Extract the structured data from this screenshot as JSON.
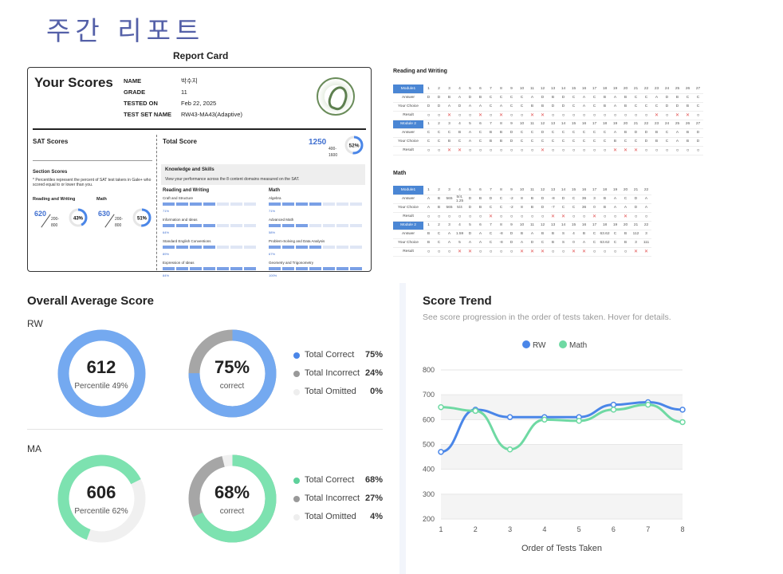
{
  "page_title": "주간 리포트",
  "report_card": {
    "title": "Report Card",
    "heading": "Your Scores",
    "info": [
      {
        "k": "NAME",
        "v": "박수지"
      },
      {
        "k": "GRADE",
        "v": "11"
      },
      {
        "k": "TESTED ON",
        "v": "Feb 22, 2025"
      },
      {
        "k": "TEST SET NAME",
        "v": "RW43-MA43(Adaptive)"
      }
    ],
    "sat_scores": "SAT Scores",
    "total_score_label": "Total Score",
    "total_score": "1250",
    "total_range": "400-\n1600",
    "total_pct": "52%",
    "section_scores": "Section Scores",
    "section_note": "* Percentiles represent the percent of SAT test takers in Gale+ who scored equal to or lower than you.",
    "rw_label": "Reading and Writing",
    "rw_score": "620",
    "rw_range": "200-\n800",
    "rw_pct": "43%",
    "math_label": "Math",
    "math_score": "630",
    "math_range": "200-\n800",
    "math_pct": "51%",
    "ks_title": "Knowledge and Skills",
    "ks_desc": "View your performance across the 8 content domains measured on the SAT.",
    "rw_domains": [
      {
        "name": "Craft and Structure",
        "pct": "71%",
        "fill": 4
      },
      {
        "name": "Information and Ideas",
        "pct": "64%",
        "fill": 4
      },
      {
        "name": "Standard English Conventions",
        "pct": "89%",
        "fill": 4
      },
      {
        "name": "Expression of Ideas",
        "pct": "84%",
        "fill": 7
      }
    ],
    "math_domains": [
      {
        "name": "Algebra",
        "pct": "71%",
        "fill": 4
      },
      {
        "name": "Advanced Math",
        "pct": "58%",
        "fill": 3
      },
      {
        "name": "Problem-Solving and Data Analysis",
        "pct": "67%",
        "fill": 4
      },
      {
        "name": "Geometry and Trigonometry",
        "pct": "100%",
        "fill": 7
      }
    ]
  },
  "rw_table": {
    "title": "Reading and Writing",
    "modules": [
      {
        "label": "Module1",
        "nums": [
          "1",
          "2",
          "3",
          "4",
          "5",
          "6",
          "7",
          "8",
          "9",
          "10",
          "11",
          "12",
          "13",
          "14",
          "15",
          "16",
          "17",
          "18",
          "19",
          "20",
          "21",
          "22",
          "23",
          "24",
          "25",
          "26",
          "27"
        ],
        "answer": [
          "D",
          "D",
          "B",
          "A",
          "D",
          "B",
          "C",
          "C",
          "C",
          "C",
          "A",
          "D",
          "B",
          "D",
          "C",
          "A",
          "C",
          "B",
          "A",
          "B",
          "C",
          "C",
          "A",
          "D",
          "B",
          "C",
          "C"
        ],
        "choice": [
          "D",
          "D",
          "A",
          "D",
          "A",
          "A",
          "C",
          "A",
          "C",
          "C",
          "B",
          "B",
          "D",
          "D",
          "C",
          "A",
          "C",
          "B",
          "A",
          "B",
          "C",
          "C",
          "C",
          "D",
          "D",
          "B",
          "C"
        ],
        "result": [
          "O",
          "O",
          "X",
          "O",
          "O",
          "X",
          "O",
          "X",
          "O",
          "O",
          "X",
          "X",
          "O",
          "O",
          "O",
          "O",
          "O",
          "O",
          "O",
          "O",
          "O",
          "O",
          "X",
          "O",
          "X",
          "X",
          "O"
        ]
      },
      {
        "label": "Module 2",
        "nums": [
          "1",
          "2",
          "3",
          "4",
          "5",
          "6",
          "7",
          "8",
          "9",
          "10",
          "11",
          "12",
          "13",
          "14",
          "15",
          "16",
          "17",
          "18",
          "19",
          "20",
          "21",
          "22",
          "23",
          "24",
          "25",
          "26",
          "27"
        ],
        "answer": [
          "C",
          "C",
          "C",
          "B",
          "A",
          "C",
          "B",
          "B",
          "D",
          "C",
          "C",
          "D",
          "C",
          "C",
          "C",
          "C",
          "C",
          "C",
          "A",
          "B",
          "D",
          "D",
          "B",
          "C",
          "A",
          "B",
          "D"
        ],
        "choice": [
          "C",
          "C",
          "B",
          "C",
          "A",
          "C",
          "B",
          "B",
          "D",
          "C",
          "C",
          "C",
          "C",
          "C",
          "C",
          "C",
          "C",
          "C",
          "B",
          "C",
          "C",
          "D",
          "B",
          "C",
          "A",
          "B",
          "D"
        ],
        "result": [
          "O",
          "O",
          "X",
          "X",
          "O",
          "O",
          "O",
          "O",
          "O",
          "O",
          "O",
          "X",
          "O",
          "O",
          "O",
          "O",
          "O",
          "O",
          "X",
          "X",
          "X",
          "O",
          "O",
          "O",
          "O",
          "O",
          "O"
        ]
      }
    ],
    "row_labels": [
      "Answer",
      "Your Choice",
      "Result"
    ]
  },
  "math_table": {
    "title": "Math",
    "modules": [
      {
        "label": "Module1",
        "nums": [
          "1",
          "2",
          "3",
          "4",
          "5",
          "6",
          "7",
          "8",
          "9",
          "10",
          "11",
          "12",
          "13",
          "14",
          "15",
          "16",
          "17",
          "18",
          "19",
          "20",
          "21",
          "22"
        ],
        "answer": [
          "A",
          "B",
          "565",
          "5/4, 1.25",
          "D",
          "B",
          "D",
          "C",
          "-2",
          "8",
          "B",
          "D",
          "-8",
          "D",
          "C",
          "36",
          "3",
          "B",
          "A",
          "C",
          "D",
          "A"
        ],
        "choice": [
          "A",
          "B",
          "565",
          "5/4",
          "D",
          "B",
          "C",
          "C",
          "-2",
          "8",
          "B",
          "D",
          "-7",
          "C",
          "C",
          "36",
          "0",
          "B",
          "A",
          "A",
          "D",
          "A"
        ],
        "result": [
          "O",
          "O",
          "O",
          "O",
          "O",
          "O",
          "X",
          "O",
          "O",
          "O",
          "O",
          "O",
          "X",
          "X",
          "O",
          "O",
          "X",
          "O",
          "O",
          "X",
          "O",
          "O"
        ]
      },
      {
        "label": "Module 2",
        "nums": [
          "1",
          "2",
          "3",
          "4",
          "5",
          "6",
          "7",
          "8",
          "9",
          "10",
          "11",
          "12",
          "13",
          "14",
          "15",
          "16",
          "17",
          "18",
          "19",
          "20",
          "21",
          "22"
        ],
        "answer": [
          "B",
          "C",
          "A",
          "1.59",
          "D",
          "A",
          "C",
          "-8",
          "D",
          "B",
          "A",
          "B",
          "B",
          "S",
          "4",
          "B",
          "C",
          "63.62",
          "C",
          "B",
          "112",
          "3"
        ],
        "choice": [
          "B",
          "C",
          "A",
          "5",
          "A",
          "A",
          "C",
          "-8",
          "D",
          "A",
          "D",
          "C",
          "B",
          "S",
          "0",
          "A",
          "C",
          "63.62",
          "C",
          "B",
          "3",
          "111"
        ],
        "result": [
          "O",
          "O",
          "O",
          "X",
          "X",
          "O",
          "O",
          "O",
          "O",
          "X",
          "X",
          "X",
          "O",
          "O",
          "X",
          "X",
          "O",
          "O",
          "O",
          "O",
          "X",
          "X"
        ]
      }
    ],
    "row_labels": [
      "Answer",
      "Your Choice",
      "Result"
    ]
  },
  "overall": {
    "title": "Overall Average Score",
    "rw": {
      "label": "RW",
      "score": "612",
      "percentile": "Percentile 49%",
      "correct_pct": "75%",
      "correct_sub": "correct",
      "legend": [
        {
          "name": "Total Correct",
          "val": "75%",
          "color": "#4a86e8"
        },
        {
          "name": "Total Incorrect",
          "val": "24%",
          "color": "#999999"
        },
        {
          "name": "Total Omitted",
          "val": "0%",
          "color": "#eeeeee"
        }
      ]
    },
    "ma": {
      "label": "MA",
      "score": "606",
      "percentile": "Percentile 62%",
      "correct_pct": "68%",
      "correct_sub": "correct",
      "legend": [
        {
          "name": "Total Correct",
          "val": "68%",
          "color": "#5ed19b"
        },
        {
          "name": "Total Incorrect",
          "val": "27%",
          "color": "#999999"
        },
        {
          "name": "Total Omitted",
          "val": "4%",
          "color": "#eeeeee"
        }
      ]
    }
  },
  "chart_data": {
    "type": "line",
    "title": "Score Trend",
    "subtitle": "See score progression in the order of tests taken. Hover for details.",
    "xlabel": "Order of Tests Taken",
    "ylabel": "",
    "x": [
      1,
      2,
      3,
      4,
      5,
      6,
      7,
      8
    ],
    "ylim": [
      200,
      800
    ],
    "yticks": [
      200,
      300,
      400,
      500,
      600,
      700,
      800
    ],
    "series": [
      {
        "name": "RW",
        "color": "#4a86e8",
        "values": [
          470,
          640,
          610,
          610,
          610,
          660,
          670,
          640
        ]
      },
      {
        "name": "Math",
        "color": "#6fd9a3",
        "values": [
          650,
          635,
          480,
          600,
          595,
          640,
          660,
          590
        ]
      }
    ],
    "legend": "top-center",
    "grid": true
  }
}
